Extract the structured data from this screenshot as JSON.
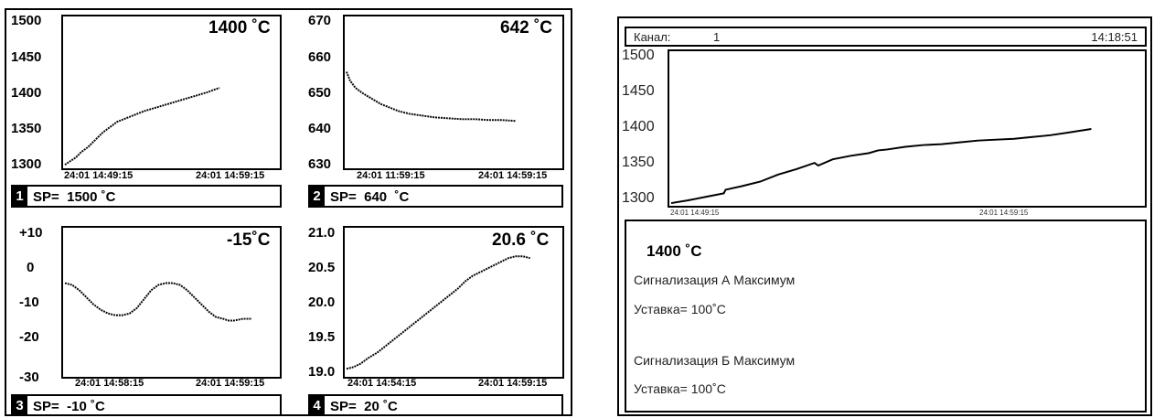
{
  "left_panel": {
    "charts": [
      {
        "number": "1",
        "value": "1400 ˚C",
        "setpoint": "SP=  1500 ˚C",
        "yticks": [
          "1500",
          "1450",
          "1400",
          "1350",
          "1300"
        ],
        "xticks": [
          "24:01 14:49:15",
          "24:01 14:59:15"
        ]
      },
      {
        "number": "2",
        "value": "642 ˚C",
        "setpoint": "SP=  640  ˚C",
        "yticks": [
          "670",
          "660",
          "650",
          "640",
          "630"
        ],
        "xticks": [
          "24:01 11:59:15",
          "24:01 14:59:15"
        ]
      },
      {
        "number": "3",
        "value": "-15˚C",
        "setpoint": "SP=  -10 ˚C",
        "yticks": [
          "+10",
          "0",
          "-10",
          "-20",
          "-30"
        ],
        "xticks": [
          "24:01 14:58:15",
          "24:01 14:59:15"
        ]
      },
      {
        "number": "4",
        "value": "20.6 ˚C",
        "setpoint": "SP=  20 ˚C",
        "yticks": [
          "21.0",
          "20.5",
          "20.0",
          "19.5",
          "19.0"
        ],
        "xticks": [
          "24:01 14:54:15",
          "24:01 14:59:15"
        ]
      }
    ]
  },
  "right_panel": {
    "header": {
      "channel_label": "Канал:",
      "channel_value": "1",
      "time": "14:18:51"
    },
    "chart": {
      "yticks": [
        "1500",
        "1450",
        "1400",
        "1350",
        "1300"
      ],
      "xticks": [
        "24:01 14:49:15",
        "24:01 14:59:15"
      ]
    },
    "info": {
      "value": "1400 ˚C",
      "alarm_a_title": "Сигнализация А Максимум",
      "alarm_a_setpoint": "Уставка=   100˚C",
      "alarm_b_title": "Сигнализация Б Максимум",
      "alarm_b_setpoint": "Уставка=   100˚C"
    }
  }
}
